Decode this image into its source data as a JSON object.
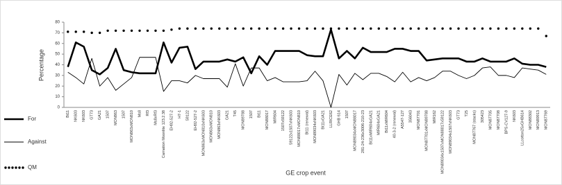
{
  "chart_data": {
    "type": "line",
    "x_label": "GE crop event",
    "y_label": "Percentage",
    "categories": [
      "Bt11",
      "NK603",
      "NK603",
      "GT73",
      "GA21",
      "1507",
      "MON863",
      "1507",
      "MON863xMON810",
      "Ms8",
      "Rf3",
      "Ms8xRf3",
      "Carnation Moonlite 123.2.38",
      "EH92-527-2",
      "H7-1",
      "59122",
      "EH92-527-2",
      "MON863xMON810xNK603",
      "MON863xMON810",
      "MON863xNK603",
      "GA21",
      "T45",
      "MON89788",
      "1507",
      "Bt11",
      "MON88017",
      "MIR604",
      "1507x59122",
      "59122x1507xNK603",
      "MON88017xMON810",
      "Bt11 (renewal)",
      "MON89034xNK603",
      "Bt11xGA21",
      "LLRICE62",
      "GHB 614",
      "1507",
      "MON89034xMON88017",
      "281-24-236x3006-210-23",
      "Bt11xMIR604xGA21",
      "MIR604xGA21",
      "Bt11xMIR604",
      "40-3-2 (renewal)",
      "A5547-127",
      "356043",
      "MON87701",
      "MON87701xMON89788",
      "MIR162",
      "MON89034x1507xMON88017x59122",
      "MON89034x1507xNK603",
      "GT73",
      "T25",
      "MON87767 (stacks)",
      "305423",
      "MON87705",
      "MON87708",
      "BPS-CV127-9",
      "NK603",
      "LLcotton25xGHB614",
      "MON88302",
      "MON89913",
      "MON87769"
    ],
    "series": [
      {
        "name": "For",
        "color": "#000000",
        "values": [
          38,
          61,
          57,
          35,
          31,
          37,
          55,
          35,
          33,
          32,
          32,
          32,
          61,
          42,
          56,
          57,
          36,
          43,
          43,
          43,
          45,
          43,
          47,
          32,
          48,
          40,
          53,
          53,
          53,
          53,
          49,
          48,
          48,
          73,
          46,
          53,
          46,
          56,
          52,
          52,
          52,
          55,
          55,
          53,
          53,
          44,
          45,
          46,
          46,
          46,
          43,
          43,
          46,
          43,
          43,
          43,
          46,
          41,
          40,
          40,
          38
        ]
      },
      {
        "name": "Against",
        "color": "#000000",
        "values": [
          33,
          28,
          22,
          46,
          20,
          28,
          16,
          22,
          28,
          47,
          47,
          47,
          15,
          25,
          25,
          23,
          30,
          27,
          27,
          27,
          19,
          41,
          20,
          37,
          37,
          25,
          28,
          24,
          24,
          24,
          25,
          34,
          25,
          0,
          31,
          21,
          32,
          26,
          32,
          32,
          29,
          24,
          33,
          24,
          28,
          25,
          28,
          34,
          34,
          30,
          27,
          30,
          37,
          38,
          30,
          30,
          28,
          37,
          36,
          35,
          31
        ]
      },
      {
        "name": "QM",
        "color": "#000000",
        "values": [
          71,
          71,
          71,
          70,
          70,
          72,
          72,
          72,
          72,
          72,
          72,
          72,
          72,
          73,
          74,
          74,
          74,
          74,
          74,
          74,
          74,
          74,
          74,
          74,
          74,
          74,
          74,
          74,
          74,
          74,
          74,
          74,
          74,
          74,
          74,
          74,
          74,
          74,
          74,
          74,
          74,
          74,
          74,
          74,
          74,
          74,
          74,
          74,
          74,
          74,
          74,
          74,
          74,
          74,
          74,
          74,
          74,
          74,
          74,
          74,
          67
        ]
      }
    ],
    "ylim": [
      0,
      80
    ],
    "yticks": [
      0,
      10,
      20,
      30,
      40,
      50,
      60,
      70,
      80
    ],
    "grid": false,
    "legend": "left"
  }
}
